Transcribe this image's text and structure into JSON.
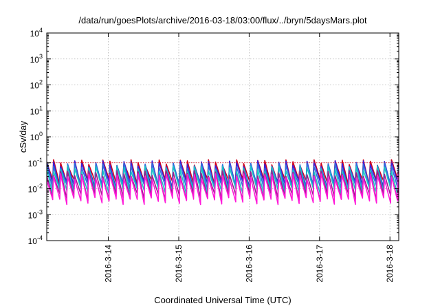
{
  "chart_data": {
    "type": "line",
    "title": "/data/run/goesPlots/archive/2016-03-18/03:00/flux/../bryn/5daysMars.plot",
    "xlabel": "Coordinated Universal Time (UTC)",
    "ylabel": "cSv/day",
    "y_scale": "log",
    "ylim": [
      0.0001,
      10000
    ],
    "xlim": [
      "2016-03-13 03:00",
      "2016-03-18 03:00"
    ],
    "grid": true,
    "x_ticks": [
      "2016-3-14",
      "2016-3-15",
      "2016-3-16",
      "2016-3-17",
      "2016-3-18"
    ],
    "y_ticks": [
      {
        "value": 0.0001,
        "base": "10",
        "exp": "-4"
      },
      {
        "value": 0.001,
        "base": "10",
        "exp": "-3"
      },
      {
        "value": 0.01,
        "base": "10",
        "exp": "-2"
      },
      {
        "value": 0.1,
        "base": "10",
        "exp": "-1"
      },
      {
        "value": 1,
        "base": "10",
        "exp": "0"
      },
      {
        "value": 10,
        "base": "10",
        "exp": "1"
      },
      {
        "value": 100,
        "base": "10",
        "exp": "2"
      },
      {
        "value": 1000,
        "base": "10",
        "exp": "3"
      },
      {
        "value": 10000,
        "base": "10",
        "exp": "4"
      }
    ],
    "reference_line": {
      "value": 0.1,
      "color": "#e8001c"
    },
    "cycle_hours": 2.4,
    "series": [
      {
        "color": "#d0021b",
        "peak": 0.105,
        "trough": 0.018
      },
      {
        "color": "#3b1fd9",
        "peak": 0.095,
        "trough": 0.014
      },
      {
        "color": "#2f6fdc",
        "peak": 0.08,
        "trough": 0.011
      },
      {
        "color": "#19c5c5",
        "peak": 0.06,
        "trough": 0.008
      },
      {
        "color": "#9a1f8e",
        "peak": 0.04,
        "trough": 0.005
      },
      {
        "color": "#ff1ad9",
        "peak": 0.03,
        "trough": 0.0035
      }
    ]
  }
}
